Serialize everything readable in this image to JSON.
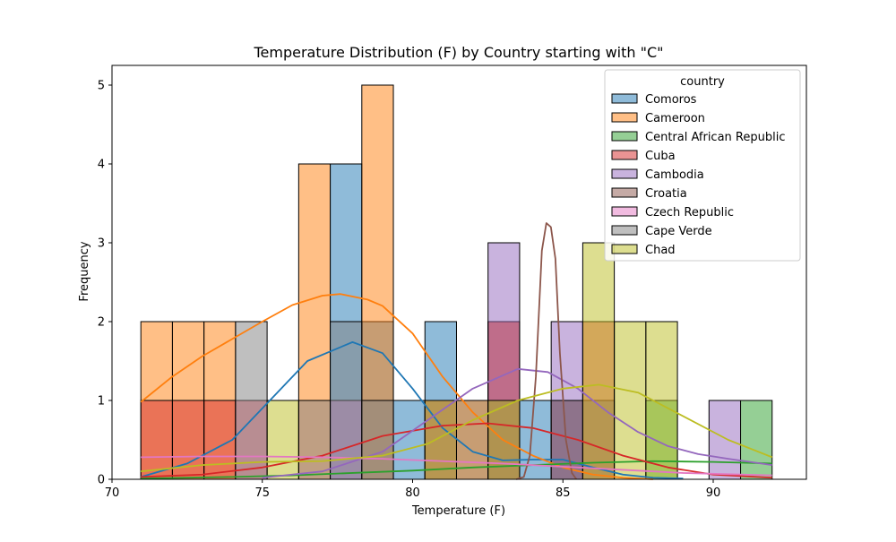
{
  "chart_data": {
    "type": "bar",
    "subtype": "histogram-with-kde",
    "title": "Temperature Distribution (F) by Country starting with \"C\"",
    "xlabel": "Temperature (F)",
    "ylabel": "Frequency",
    "xlim": [
      70.0,
      93.1
    ],
    "ylim": [
      0,
      5.25
    ],
    "xticks": [
      70,
      75,
      80,
      85,
      90
    ],
    "yticks": [
      0,
      1,
      2,
      3,
      4,
      5
    ],
    "grid": false,
    "legend": {
      "title": "country",
      "placement": "top-right"
    },
    "bin_edges": [
      70.96,
      72.01,
      73.06,
      74.11,
      75.16,
      76.21,
      77.26,
      78.31,
      79.36,
      80.41,
      81.46,
      82.51,
      83.56,
      84.61,
      85.66,
      86.71,
      87.76,
      88.81,
      89.86,
      90.91,
      91.96
    ],
    "series": [
      {
        "name": "Comoros",
        "color": "#1f77b4",
        "counts": [
          0,
          0,
          0,
          0,
          0,
          0,
          4,
          2,
          1,
          2,
          1,
          0,
          1,
          1,
          1,
          0,
          0,
          0,
          0,
          0
        ],
        "kde": [
          [
            70.96,
            0.03
          ],
          [
            72.5,
            0.2
          ],
          [
            74,
            0.5
          ],
          [
            75.5,
            1.1
          ],
          [
            76.5,
            1.5
          ],
          [
            78,
            1.74
          ],
          [
            79,
            1.6
          ],
          [
            80,
            1.15
          ],
          [
            81,
            0.65
          ],
          [
            82,
            0.35
          ],
          [
            83,
            0.24
          ],
          [
            84,
            0.25
          ],
          [
            85,
            0.25
          ],
          [
            86,
            0.15
          ],
          [
            87,
            0.06
          ],
          [
            88,
            0.02
          ],
          [
            89,
            0.01
          ]
        ]
      },
      {
        "name": "Cameroon",
        "color": "#ff7f0e",
        "counts": [
          2,
          2,
          2,
          1,
          0,
          4,
          0,
          5,
          0,
          0,
          1,
          2,
          0,
          0,
          0,
          0,
          0,
          0,
          0,
          0
        ],
        "kde": [
          [
            70.96,
            0.98
          ],
          [
            72,
            1.3
          ],
          [
            73,
            1.56
          ],
          [
            74,
            1.78
          ],
          [
            75,
            2.0
          ],
          [
            76,
            2.21
          ],
          [
            77,
            2.33
          ],
          [
            77.6,
            2.35
          ],
          [
            78.5,
            2.28
          ],
          [
            79,
            2.2
          ],
          [
            80,
            1.85
          ],
          [
            81,
            1.3
          ],
          [
            82,
            0.85
          ],
          [
            83,
            0.5
          ],
          [
            84,
            0.3
          ],
          [
            85,
            0.15
          ],
          [
            86,
            0.06
          ],
          [
            87,
            0.02
          ],
          [
            88,
            0.0
          ]
        ]
      },
      {
        "name": "Central African Republic",
        "color": "#2ca02c",
        "counts": [
          0,
          0,
          0,
          0,
          0,
          0,
          0,
          0,
          0,
          0,
          0,
          1,
          0,
          0,
          0,
          0,
          1,
          0,
          0,
          1
        ],
        "kde": [
          [
            70.96,
            0.01
          ],
          [
            74,
            0.03
          ],
          [
            76,
            0.05
          ],
          [
            78,
            0.08
          ],
          [
            80,
            0.11
          ],
          [
            82,
            0.15
          ],
          [
            84,
            0.18
          ],
          [
            86,
            0.21
          ],
          [
            88,
            0.23
          ],
          [
            90,
            0.22
          ],
          [
            91.96,
            0.2
          ]
        ]
      },
      {
        "name": "Cuba",
        "color": "#d62728",
        "counts": [
          1,
          1,
          1,
          0,
          0,
          0,
          0,
          0,
          0,
          1,
          0,
          2,
          0,
          0,
          2,
          0,
          0,
          0,
          0,
          0
        ],
        "kde": [
          [
            70.96,
            0.03
          ],
          [
            73,
            0.06
          ],
          [
            75,
            0.15
          ],
          [
            77,
            0.3
          ],
          [
            79,
            0.55
          ],
          [
            81,
            0.68
          ],
          [
            82.5,
            0.71
          ],
          [
            84,
            0.65
          ],
          [
            85.5,
            0.5
          ],
          [
            87,
            0.3
          ],
          [
            88.5,
            0.15
          ],
          [
            90,
            0.06
          ],
          [
            91.96,
            0.02
          ]
        ]
      },
      {
        "name": "Cambodia",
        "color": "#9467bd",
        "counts": [
          0,
          0,
          0,
          0,
          0,
          0,
          0,
          0,
          0,
          0,
          0,
          3,
          0,
          2,
          0,
          0,
          0,
          0,
          1,
          0
        ],
        "kde": [
          [
            75,
            0.02
          ],
          [
            77,
            0.1
          ],
          [
            79,
            0.35
          ],
          [
            80.5,
            0.75
          ],
          [
            82,
            1.15
          ],
          [
            83.5,
            1.4
          ],
          [
            84.5,
            1.36
          ],
          [
            85.5,
            1.15
          ],
          [
            86.5,
            0.85
          ],
          [
            87.5,
            0.6
          ],
          [
            88.5,
            0.42
          ],
          [
            89.5,
            0.32
          ],
          [
            90.5,
            0.26
          ],
          [
            91.96,
            0.18
          ]
        ]
      },
      {
        "name": "Croatia",
        "color": "#8c564b",
        "counts": [
          0,
          0,
          0,
          0,
          0,
          0,
          0,
          0,
          0,
          0,
          0,
          0,
          0,
          1,
          0,
          0,
          0,
          0,
          0,
          0
        ],
        "kde": [
          [
            83.45,
            0.0
          ],
          [
            83.7,
            0.03
          ],
          [
            83.9,
            0.3
          ],
          [
            84.1,
            1.3
          ],
          [
            84.3,
            2.9
          ],
          [
            84.45,
            3.25
          ],
          [
            84.6,
            3.2
          ],
          [
            84.75,
            2.8
          ],
          [
            84.9,
            1.6
          ],
          [
            85.1,
            0.5
          ],
          [
            85.3,
            0.08
          ],
          [
            85.45,
            0.0
          ]
        ]
      },
      {
        "name": "Czech Republic",
        "color": "#e377c2",
        "counts": [
          0,
          0,
          0,
          1,
          0,
          0,
          1,
          0,
          0,
          0,
          0,
          0,
          0,
          0,
          0,
          0,
          0,
          0,
          0,
          0
        ],
        "kde": [
          [
            70.96,
            0.28
          ],
          [
            73,
            0.29
          ],
          [
            75,
            0.29
          ],
          [
            77,
            0.28
          ],
          [
            79,
            0.26
          ],
          [
            81,
            0.23
          ],
          [
            83,
            0.2
          ],
          [
            85,
            0.16
          ],
          [
            87,
            0.12
          ],
          [
            89,
            0.08
          ],
          [
            91.96,
            0.05
          ]
        ]
      },
      {
        "name": "Cape Verde",
        "color": "#7f7f7f",
        "counts": [
          0,
          0,
          0,
          2,
          0,
          1,
          2,
          1,
          0,
          0,
          0,
          0,
          0,
          0,
          0,
          0,
          0,
          0,
          0,
          0
        ],
        "kde": []
      },
      {
        "name": "Chad",
        "color": "#bcbd22",
        "counts": [
          0,
          0,
          0,
          0,
          1,
          0,
          0,
          0,
          0,
          1,
          0,
          1,
          0,
          0,
          3,
          2,
          2,
          0,
          0,
          0
        ],
        "kde": [
          [
            70.96,
            0.1
          ],
          [
            73,
            0.18
          ],
          [
            75,
            0.22
          ],
          [
            77,
            0.23
          ],
          [
            79,
            0.3
          ],
          [
            80.5,
            0.45
          ],
          [
            82,
            0.75
          ],
          [
            83.5,
            1.0
          ],
          [
            85,
            1.15
          ],
          [
            86.2,
            1.2
          ],
          [
            87.5,
            1.1
          ],
          [
            89,
            0.8
          ],
          [
            90.5,
            0.5
          ],
          [
            91.96,
            0.28
          ]
        ]
      }
    ]
  }
}
